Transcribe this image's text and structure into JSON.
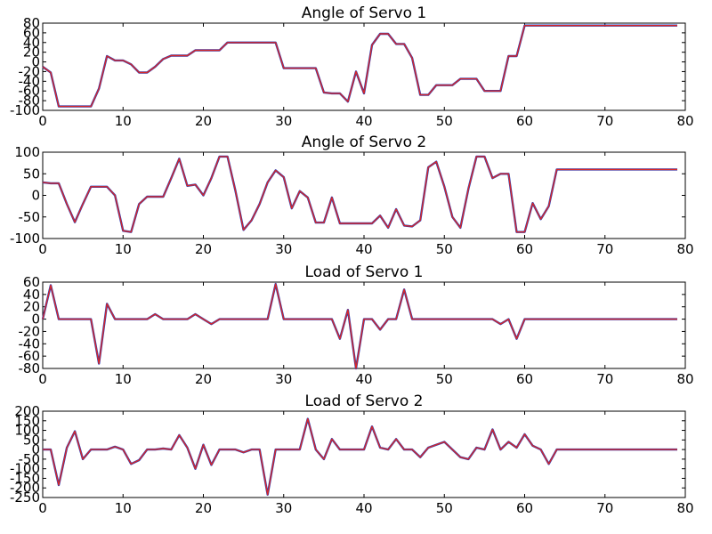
{
  "figure": {
    "background": "#ffffff",
    "line_color_outer": "#1f3fbf",
    "line_color_inner": "#d62728"
  },
  "chart_data": [
    {
      "type": "line",
      "title": "Angle of Servo 1",
      "xlim": [
        0,
        80
      ],
      "ylim": [
        -100,
        80
      ],
      "xticks": [
        0,
        10,
        20,
        30,
        40,
        50,
        60,
        70,
        80
      ],
      "yticks": [
        -100,
        -80,
        -60,
        -40,
        -20,
        0,
        20,
        40,
        60,
        80
      ],
      "grid": false,
      "x": [
        0,
        1,
        2,
        3,
        4,
        5,
        6,
        7,
        8,
        9,
        10,
        11,
        12,
        13,
        14,
        15,
        16,
        17,
        18,
        19,
        20,
        21,
        22,
        23,
        24,
        25,
        26,
        27,
        28,
        29,
        30,
        31,
        32,
        33,
        34,
        35,
        36,
        37,
        38,
        39,
        40,
        41,
        42,
        43,
        44,
        45,
        46,
        47,
        48,
        49,
        50,
        51,
        52,
        53,
        54,
        55,
        56,
        57,
        58,
        59,
        60,
        61,
        62,
        63,
        64,
        65,
        66,
        67,
        68,
        69,
        70,
        71,
        72,
        73,
        74,
        75,
        76,
        77,
        78,
        79
      ],
      "series": [
        {
          "values": [
            -10,
            -22,
            -92,
            -92,
            -92,
            -92,
            -92,
            -55,
            12,
            3,
            3,
            -5,
            -22,
            -22,
            -10,
            6,
            13,
            13,
            13,
            24,
            24,
            24,
            24,
            40,
            40,
            40,
            40,
            40,
            40,
            40,
            -13,
            -13,
            -13,
            -13,
            -13,
            -63,
            -65,
            -65,
            -82,
            -20,
            -65,
            35,
            58,
            58,
            37,
            37,
            8,
            -68,
            -68,
            -48,
            -48,
            -48,
            -35,
            -35,
            -35,
            -60,
            -60,
            -60,
            12,
            12,
            75,
            75,
            75,
            75,
            75,
            75,
            75,
            75,
            75,
            75,
            75,
            75,
            75,
            75,
            75,
            75,
            75,
            75,
            75,
            75
          ]
        }
      ]
    },
    {
      "type": "line",
      "title": "Angle of Servo 2",
      "xlim": [
        0,
        80
      ],
      "ylim": [
        -100,
        100
      ],
      "xticks": [
        0,
        10,
        20,
        30,
        40,
        50,
        60,
        70,
        80
      ],
      "yticks": [
        -100,
        -50,
        0,
        50,
        100
      ],
      "grid": false,
      "x": [
        0,
        1,
        2,
        3,
        4,
        5,
        6,
        7,
        8,
        9,
        10,
        11,
        12,
        13,
        14,
        15,
        16,
        17,
        18,
        19,
        20,
        21,
        22,
        23,
        24,
        25,
        26,
        27,
        28,
        29,
        30,
        31,
        32,
        33,
        34,
        35,
        36,
        37,
        38,
        39,
        40,
        41,
        42,
        43,
        44,
        45,
        46,
        47,
        48,
        49,
        50,
        51,
        52,
        53,
        54,
        55,
        56,
        57,
        58,
        59,
        60,
        61,
        62,
        63,
        64,
        65,
        66,
        67,
        68,
        69,
        70,
        71,
        72,
        73,
        74,
        75,
        76,
        77,
        78,
        79
      ],
      "series": [
        {
          "values": [
            30,
            28,
            28,
            -20,
            -62,
            -20,
            20,
            20,
            20,
            0,
            -82,
            -85,
            -20,
            -3,
            -3,
            -3,
            40,
            85,
            22,
            25,
            0,
            40,
            90,
            90,
            10,
            -80,
            -58,
            -20,
            30,
            58,
            42,
            -30,
            10,
            -5,
            -63,
            -63,
            -5,
            -65,
            -65,
            -65,
            -65,
            -65,
            -47,
            -75,
            -32,
            -70,
            -72,
            -58,
            65,
            78,
            20,
            -50,
            -75,
            15,
            90,
            90,
            40,
            50,
            50,
            -85,
            -85,
            -18,
            -55,
            -25,
            60,
            60,
            60,
            60,
            60,
            60,
            60,
            60,
            60,
            60,
            60,
            60,
            60,
            60,
            60,
            60
          ]
        }
      ]
    },
    {
      "type": "line",
      "title": "Load of Servo 1",
      "xlim": [
        0,
        80
      ],
      "ylim": [
        -80,
        60
      ],
      "xticks": [
        0,
        10,
        20,
        30,
        40,
        50,
        60,
        70,
        80
      ],
      "yticks": [
        -80,
        -60,
        -40,
        -20,
        0,
        20,
        40,
        60
      ],
      "grid": false,
      "x": [
        0,
        1,
        2,
        3,
        4,
        5,
        6,
        7,
        8,
        9,
        10,
        11,
        12,
        13,
        14,
        15,
        16,
        17,
        18,
        19,
        20,
        21,
        22,
        23,
        24,
        25,
        26,
        27,
        28,
        29,
        30,
        31,
        32,
        33,
        34,
        35,
        36,
        37,
        38,
        39,
        40,
        41,
        42,
        43,
        44,
        45,
        46,
        47,
        48,
        49,
        50,
        51,
        52,
        53,
        54,
        55,
        56,
        57,
        58,
        59,
        60,
        61,
        62,
        63,
        64,
        65,
        66,
        67,
        68,
        69,
        70,
        71,
        72,
        73,
        74,
        75,
        76,
        77,
        78,
        79
      ],
      "series": [
        {
          "values": [
            0,
            55,
            0,
            0,
            0,
            0,
            0,
            -72,
            25,
            0,
            0,
            0,
            0,
            0,
            8,
            0,
            0,
            0,
            0,
            8,
            0,
            -8,
            0,
            0,
            0,
            0,
            0,
            0,
            0,
            57,
            0,
            0,
            0,
            0,
            0,
            0,
            0,
            -32,
            15,
            -80,
            0,
            0,
            -17,
            0,
            0,
            48,
            0,
            0,
            0,
            0,
            0,
            0,
            0,
            0,
            0,
            0,
            0,
            -8,
            0,
            -32,
            0,
            0,
            0,
            0,
            0,
            0,
            0,
            0,
            0,
            0,
            0,
            0,
            0,
            0,
            0,
            0,
            0,
            0,
            0,
            0
          ]
        }
      ]
    },
    {
      "type": "line",
      "title": "Load of Servo 2",
      "xlim": [
        0,
        80
      ],
      "ylim": [
        -250,
        200
      ],
      "xticks": [
        0,
        10,
        20,
        30,
        40,
        50,
        60,
        70,
        80
      ],
      "yticks": [
        -250,
        -200,
        -150,
        -100,
        -50,
        0,
        50,
        100,
        150,
        200
      ],
      "grid": false,
      "x": [
        0,
        1,
        2,
        3,
        4,
        5,
        6,
        7,
        8,
        9,
        10,
        11,
        12,
        13,
        14,
        15,
        16,
        17,
        18,
        19,
        20,
        21,
        22,
        23,
        24,
        25,
        26,
        27,
        28,
        29,
        30,
        31,
        32,
        33,
        34,
        35,
        36,
        37,
        38,
        39,
        40,
        41,
        42,
        43,
        44,
        45,
        46,
        47,
        48,
        49,
        50,
        51,
        52,
        53,
        54,
        55,
        56,
        57,
        58,
        59,
        60,
        61,
        62,
        63,
        64,
        65,
        66,
        67,
        68,
        69,
        70,
        71,
        72,
        73,
        74,
        75,
        76,
        77,
        78,
        79
      ],
      "series": [
        {
          "values": [
            0,
            0,
            -185,
            10,
            95,
            -50,
            0,
            0,
            0,
            15,
            0,
            -75,
            -55,
            0,
            0,
            5,
            0,
            75,
            10,
            -100,
            25,
            -80,
            0,
            0,
            0,
            -15,
            0,
            0,
            -235,
            0,
            0,
            0,
            0,
            160,
            0,
            -50,
            55,
            0,
            0,
            0,
            0,
            120,
            10,
            0,
            55,
            0,
            0,
            -40,
            10,
            25,
            40,
            0,
            -40,
            -50,
            10,
            0,
            105,
            0,
            40,
            10,
            80,
            20,
            0,
            -75,
            0,
            0,
            0,
            0,
            0,
            0,
            0,
            0,
            0,
            0,
            0,
            0,
            0,
            0,
            0,
            0
          ]
        }
      ]
    }
  ]
}
